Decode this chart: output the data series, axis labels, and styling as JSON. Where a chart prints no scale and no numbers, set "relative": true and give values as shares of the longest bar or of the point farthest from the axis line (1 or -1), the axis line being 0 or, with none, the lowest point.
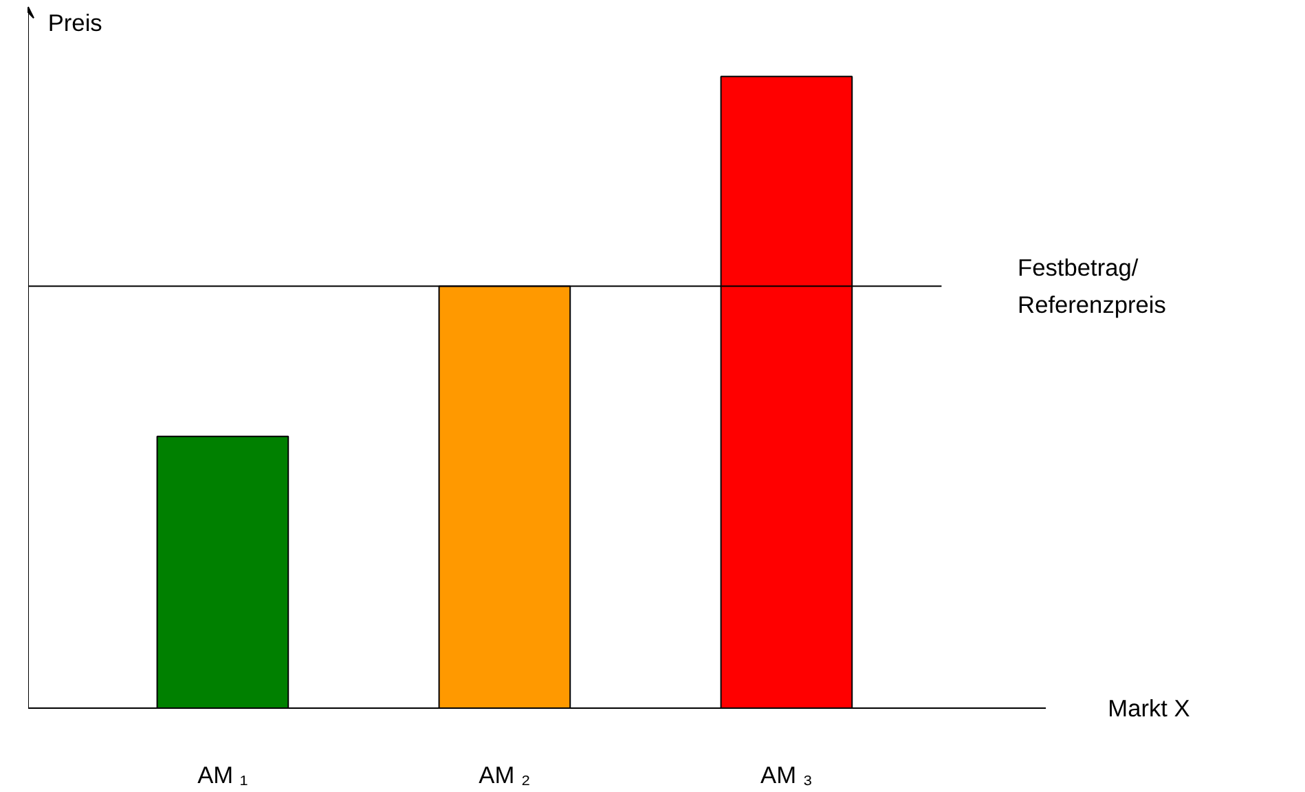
{
  "chart_data": {
    "type": "bar",
    "relative": true,
    "xlabel": "Markt X",
    "ylabel": "Preis",
    "categories": [
      "AM ₁",
      "AM ₂",
      "AM ₃"
    ],
    "values": [
      0.43,
      0.668,
      1
    ],
    "colors": [
      "#008000",
      "#ff9900",
      "#ff0000"
    ],
    "ref_lines": [
      {
        "axis": "y",
        "value": 0.668,
        "label": "Festbetrag/\nReferenzpreis"
      }
    ]
  }
}
